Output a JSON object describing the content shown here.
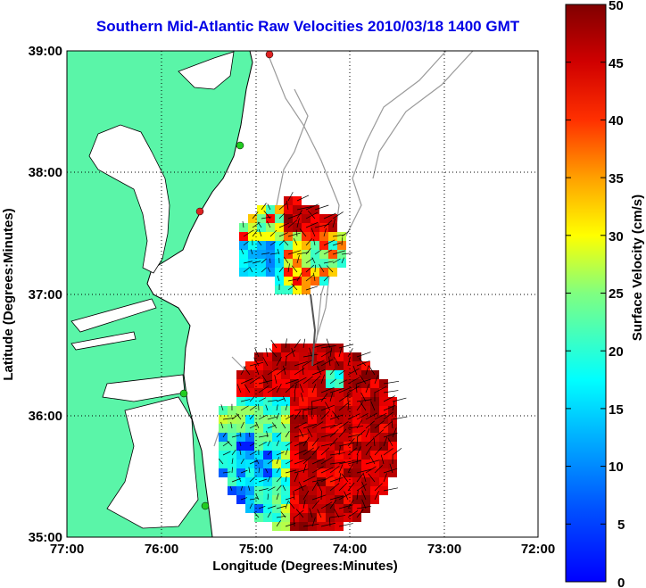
{
  "title": "Southern Mid-Atlantic Raw Velocities 2010/03/18 1400 GMT",
  "title_color": "#0000e6",
  "xaxis": {
    "label": "Longitude (Degrees:Minutes)",
    "ticks": [
      "77:00",
      "76:00",
      "75:00",
      "74:00",
      "73:00",
      "72:00"
    ]
  },
  "yaxis": {
    "label": "Latitude (Degrees:Minutes)",
    "ticks": [
      "39:00",
      "38:00",
      "37:00",
      "36:00",
      "35:00"
    ]
  },
  "colorbar": {
    "label": "Surface Velocity (cm/s)",
    "ticks": [
      "50",
      "45",
      "40",
      "35",
      "30",
      "25",
      "20",
      "15",
      "10",
      "5",
      "0"
    ],
    "colormap": "jet",
    "range": [
      0,
      50
    ]
  },
  "colors": {
    "land": "#5af5a8",
    "water": "#ffffff",
    "bathymetry": "#9a9a9a",
    "coast": "#000000",
    "station_green": "#22cc22",
    "station_red": "#dd2222"
  },
  "stations": [
    {
      "name": "green-station-1",
      "color": "green"
    },
    {
      "name": "red-station-1",
      "color": "red"
    },
    {
      "name": "green-station-2",
      "color": "green"
    },
    {
      "name": "green-station-3",
      "color": "green"
    },
    {
      "name": "red-station-top",
      "color": "red"
    }
  ]
}
